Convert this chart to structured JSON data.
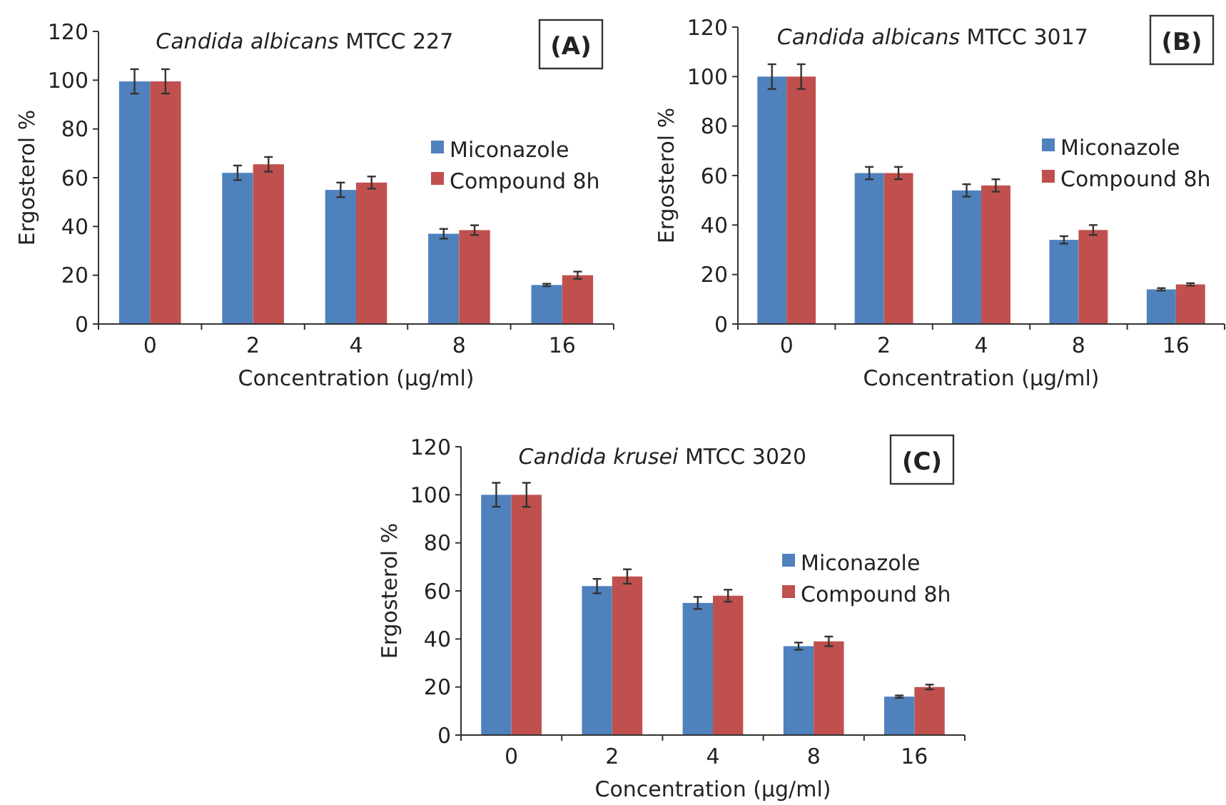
{
  "chart_data": [
    {
      "type": "bar",
      "title": "Candida albicans MTCC 227",
      "xlabel": "Concentration (µg/ml)",
      "ylabel": "Ergosterol %",
      "categories": [
        "0",
        "2",
        "4",
        "8",
        "16"
      ],
      "ylim": [
        0,
        120
      ],
      "yticks": [
        0,
        20,
        40,
        60,
        80,
        100,
        120
      ],
      "legend": "right",
      "annotations": [
        "(A)"
      ],
      "series": [
        {
          "name": "Miconazole",
          "color": "#4f81bd",
          "values": [
            99.5,
            62,
            55,
            37,
            16
          ],
          "errors": [
            5,
            3,
            3,
            2,
            0.5
          ]
        },
        {
          "name": "Compound 8h",
          "color": "#c0504d",
          "values": [
            99.5,
            65.5,
            58,
            38.5,
            20
          ],
          "errors": [
            5,
            3,
            2.5,
            2,
            1.5
          ]
        }
      ]
    },
    {
      "type": "bar",
      "title": "Candida albicans MTCC 3017",
      "xlabel": "Concentration (µg/ml)",
      "ylabel": "Ergosterol %",
      "categories": [
        "0",
        "2",
        "4",
        "8",
        "16"
      ],
      "ylim": [
        0,
        120
      ],
      "yticks": [
        0,
        20,
        40,
        60,
        80,
        100,
        120
      ],
      "legend": "right",
      "annotations": [
        "(B)"
      ],
      "series": [
        {
          "name": "Miconazole",
          "color": "#4f81bd",
          "values": [
            100,
            61,
            54,
            34,
            14
          ],
          "errors": [
            5,
            2.5,
            2.5,
            1.5,
            0.5
          ]
        },
        {
          "name": "Compound 8h",
          "color": "#c0504d",
          "values": [
            100,
            61,
            56,
            38,
            16
          ],
          "errors": [
            5,
            2.5,
            2.5,
            2,
            0.5
          ]
        }
      ]
    },
    {
      "type": "bar",
      "title": "Candida krusei MTCC 3020",
      "xlabel": "Concentration (µg/ml)",
      "ylabel": "Ergosterol %",
      "categories": [
        "0",
        "2",
        "4",
        "8",
        "16"
      ],
      "ylim": [
        0,
        120
      ],
      "yticks": [
        0,
        20,
        40,
        60,
        80,
        100,
        120
      ],
      "legend": "right",
      "annotations": [
        "(C)"
      ],
      "series": [
        {
          "name": "Miconazole",
          "color": "#4f81bd",
          "values": [
            100,
            62,
            55,
            37,
            16
          ],
          "errors": [
            5,
            3,
            2.5,
            1.5,
            0.5
          ]
        },
        {
          "name": "Compound 8h",
          "color": "#c0504d",
          "values": [
            100,
            66,
            58,
            39,
            20
          ],
          "errors": [
            5,
            3,
            2.5,
            2,
            1
          ]
        }
      ]
    }
  ]
}
